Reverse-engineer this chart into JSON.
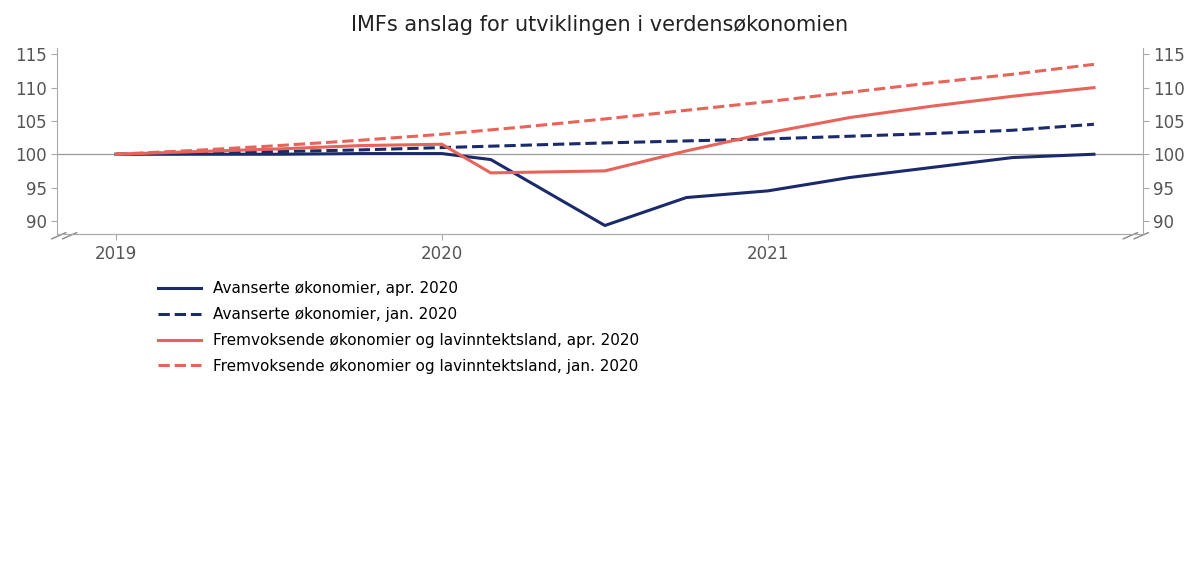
{
  "title": "IMFs anslag for utviklingen i verdensøkonomien",
  "ylim": [
    88,
    116
  ],
  "yticks": [
    90,
    95,
    100,
    105,
    110,
    115
  ],
  "background_color": "#ffffff",
  "hline_y": 100,
  "series": {
    "adv_apr": {
      "label": "Avanserte økonomier, apr. 2020",
      "color": "#1b2a6b",
      "linestyle": "solid",
      "linewidth": 2.2,
      "x": [
        2019.0,
        2019.25,
        2019.5,
        2019.75,
        2020.0,
        2020.15,
        2020.5,
        2020.75,
        2021.0,
        2021.25,
        2021.5,
        2021.75,
        2022.0
      ],
      "y": [
        100.0,
        100.0,
        100.0,
        100.1,
        100.1,
        99.2,
        89.3,
        93.5,
        94.5,
        96.5,
        98.0,
        99.5,
        100.0
      ]
    },
    "adv_jan": {
      "label": "Avanserte økonomier, jan. 2020",
      "color": "#1b2a6b",
      "linestyle": "dashed",
      "linewidth": 2.2,
      "x": [
        2019.0,
        2019.25,
        2019.5,
        2019.75,
        2020.0,
        2020.25,
        2020.5,
        2020.75,
        2021.0,
        2021.25,
        2021.5,
        2021.75,
        2022.0
      ],
      "y": [
        100.0,
        100.2,
        100.4,
        100.65,
        101.0,
        101.35,
        101.7,
        102.0,
        102.3,
        102.7,
        103.1,
        103.6,
        104.5
      ]
    },
    "em_apr": {
      "label": "Fremvoksende økonomier og lavinntektsland, apr. 2020",
      "color": "#e8635a",
      "linestyle": "solid",
      "linewidth": 2.2,
      "x": [
        2019.0,
        2019.25,
        2019.5,
        2019.75,
        2020.0,
        2020.15,
        2020.5,
        2020.75,
        2021.0,
        2021.25,
        2021.5,
        2021.75,
        2022.0
      ],
      "y": [
        100.0,
        100.4,
        100.8,
        101.3,
        101.5,
        97.2,
        97.5,
        100.5,
        103.2,
        105.5,
        107.2,
        108.7,
        110.0
      ]
    },
    "em_jan": {
      "label": "Fremvoksende økonomier og lavinntektsland, jan. 2020",
      "color": "#e8635a",
      "linestyle": "dashed",
      "linewidth": 2.2,
      "x": [
        2019.0,
        2019.25,
        2019.5,
        2019.75,
        2020.0,
        2020.25,
        2020.5,
        2020.75,
        2021.0,
        2021.25,
        2021.5,
        2021.75,
        2022.0
      ],
      "y": [
        100.0,
        100.6,
        101.3,
        102.1,
        103.0,
        104.1,
        105.3,
        106.6,
        107.9,
        109.3,
        110.7,
        112.0,
        113.5
      ]
    }
  },
  "xtick_positions": [
    2019.0,
    2020.0,
    2021.0
  ],
  "xtick_labels": [
    "2019",
    "2020",
    "2021"
  ],
  "xlim": [
    2018.82,
    2022.15
  ],
  "legend_order": [
    "adv_apr",
    "adv_jan",
    "em_apr",
    "em_jan"
  ],
  "spine_color": "#aaaaaa",
  "tick_color": "#555555"
}
